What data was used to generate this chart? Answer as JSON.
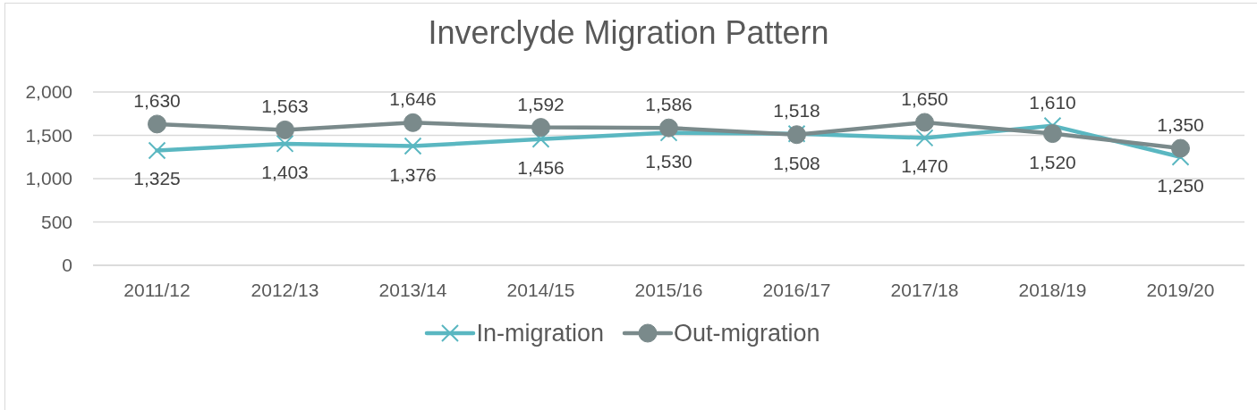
{
  "chart_data": {
    "type": "line",
    "title": "Inverclyde Migration Pattern",
    "categories": [
      "2011/12",
      "2012/13",
      "2013/14",
      "2014/15",
      "2015/16",
      "2016/17",
      "2017/18",
      "2018/19",
      "2019/20"
    ],
    "series": [
      {
        "name": "In-migration",
        "color": "#5ab7c1",
        "marker": "cross",
        "values": [
          1325,
          1403,
          1376,
          1456,
          1530,
          1518,
          1470,
          1610,
          1250
        ],
        "value_labels": [
          "1,325",
          "1,403",
          "1,376",
          "1,456",
          "1,530",
          "1,518",
          "1,470",
          "1,610",
          "1,250"
        ]
      },
      {
        "name": "Out-migration",
        "color": "#7a8a8b",
        "marker": "circle",
        "values": [
          1630,
          1563,
          1646,
          1592,
          1586,
          1508,
          1650,
          1520,
          1350
        ],
        "value_labels": [
          "1,630",
          "1,563",
          "1,646",
          "1,592",
          "1,586",
          "1,508",
          "1,650",
          "1,520",
          "1,350"
        ]
      }
    ],
    "ylim": [
      0,
      2000
    ],
    "yticks": [
      {
        "value": 0,
        "label": "0"
      },
      {
        "value": 500,
        "label": "500"
      },
      {
        "value": 1000,
        "label": "1,000"
      },
      {
        "value": 1500,
        "label": "1,500"
      },
      {
        "value": 2000,
        "label": "2,000"
      }
    ],
    "grid": "y",
    "legend": "bottom"
  }
}
